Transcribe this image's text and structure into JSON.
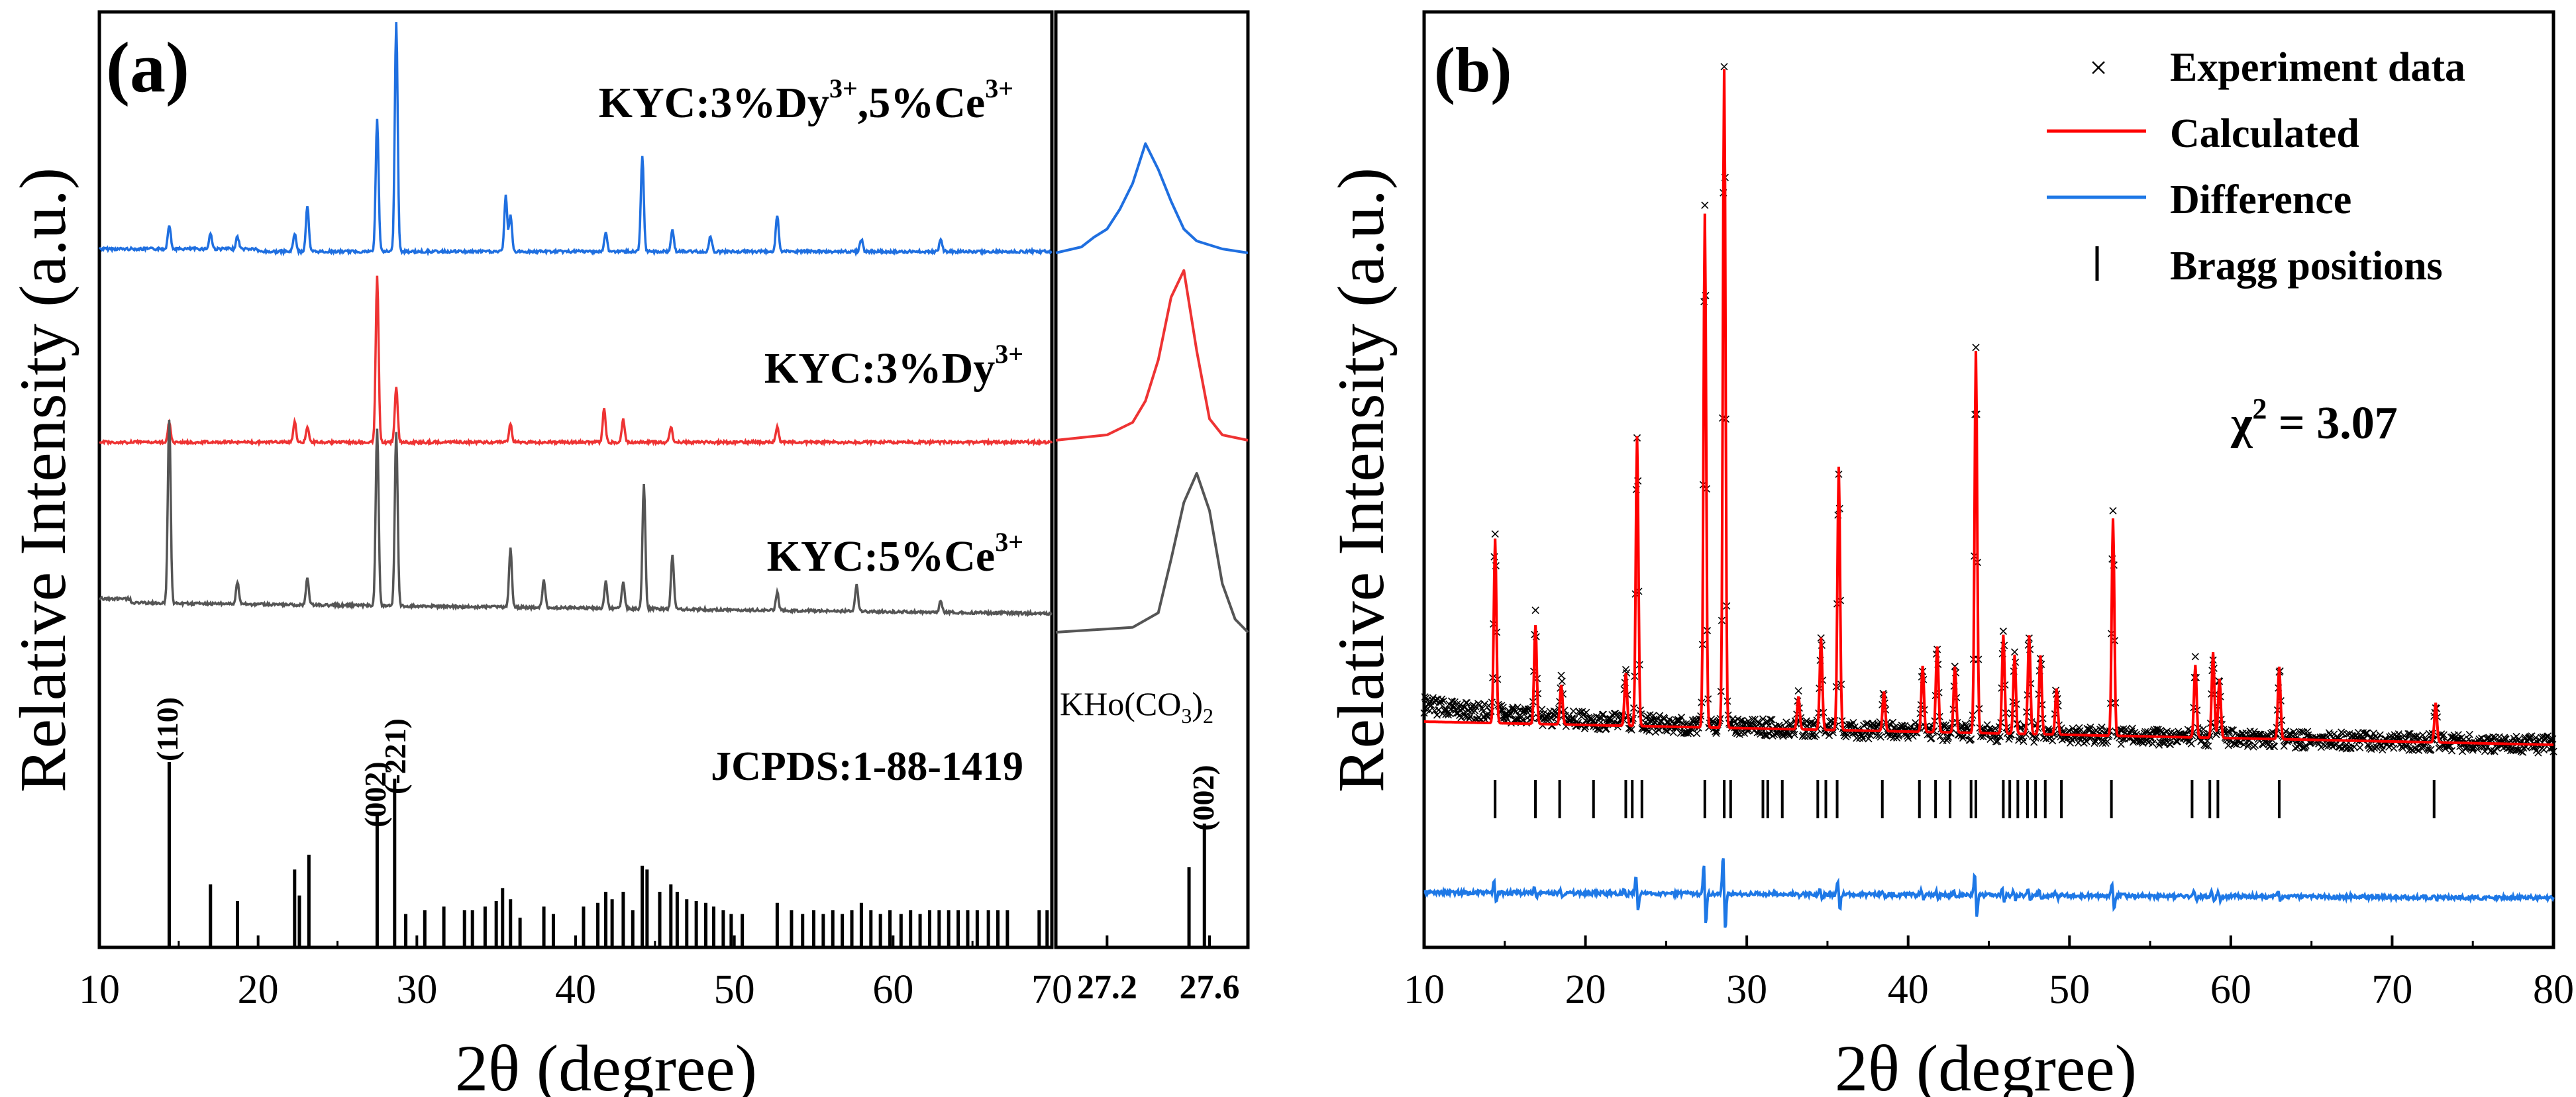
{
  "colors": {
    "blue": "#1f6fe0",
    "red": "#ee3333",
    "gray": "#555555",
    "black": "#000000",
    "calc": "#ff0000",
    "diff": "#1e78e6"
  },
  "panel_a": {
    "label": "(a)",
    "ylabel": "Relative Intensity (a.u.)",
    "xlabel": "2θ (degree)",
    "xticks": [
      "10",
      "20",
      "30",
      "40",
      "50",
      "60",
      "70"
    ],
    "inset_xticks": [
      "27.2",
      "27.6"
    ],
    "sample_labels": [
      {
        "base": "KYC:3%Dy",
        "sup1": "3+",
        "mid": ",5%Ce",
        "sup2": "3+"
      },
      {
        "base": "KYC:3%Dy",
        "sup1": "3+",
        "mid": "",
        "sup2": ""
      },
      {
        "base": "KYC:5%Ce",
        "sup1": "3+",
        "mid": "",
        "sup2": ""
      }
    ],
    "jcpds_label": "JCPDS:1-88-1419",
    "khoco_label": {
      "a": "KHo(CO",
      "b": "3",
      "c": ")",
      "d": "2"
    },
    "miller": [
      "(110)",
      "(002)",
      "(-221)"
    ],
    "inset_miller": "(002)"
  },
  "panel_b": {
    "label": "(b)",
    "ylabel": "Relative Intensity (a.u.)",
    "xlabel": "2θ (degree)",
    "xticks": [
      "10",
      "20",
      "30",
      "40",
      "50",
      "60",
      "70",
      "80"
    ],
    "legend": [
      "Experiment data",
      "Calculated",
      "Difference",
      "Bragg positions"
    ],
    "chi": {
      "sym": "χ",
      "sup": "2",
      "val": " = 3.07"
    }
  },
  "chart_data": [
    {
      "type": "line",
      "title": "",
      "xlabel": "2θ (degree)",
      "ylabel": "Relative Intensity (a.u.)",
      "xlim": [
        10,
        70
      ],
      "series": [
        {
          "name": "KYC:3%Dy3+,5%Ce3+",
          "peaks_x": [
            14.4,
            17.0,
            18.7,
            22.3,
            23.1,
            27.5,
            28.7,
            35.6,
            35.9,
            41.9,
            44.2,
            46.1,
            48.5,
            52.7,
            58.0,
            63.0
          ],
          "peaks_y": [
            0.08,
            0.05,
            0.04,
            0.06,
            0.15,
            0.43,
            0.75,
            0.18,
            0.12,
            0.06,
            0.31,
            0.07,
            0.05,
            0.12,
            0.04,
            0.04
          ]
        },
        {
          "name": "KYC:3%Dy3+",
          "peaks_x": [
            14.4,
            22.3,
            23.1,
            27.5,
            28.7,
            35.9,
            41.8,
            43.0,
            46.0,
            52.7
          ],
          "peaks_y": [
            0.08,
            0.08,
            0.06,
            0.65,
            0.22,
            0.07,
            0.13,
            0.09,
            0.06,
            0.06
          ]
        },
        {
          "name": "KYC:5%Ce3+",
          "peaks_x": [
            14.4,
            18.7,
            23.1,
            27.5,
            28.7,
            35.9,
            38.0,
            41.9,
            43.0,
            44.3,
            46.1,
            52.7,
            57.7,
            63.0
          ],
          "peaks_y": [
            0.82,
            0.1,
            0.12,
            0.79,
            0.77,
            0.26,
            0.12,
            0.12,
            0.12,
            0.56,
            0.24,
            0.08,
            0.12,
            0.05
          ]
        },
        {
          "name": "JCPDS:1-88-1419",
          "sticks_x": [
            14.4,
            17.0,
            18.7,
            22.3,
            22.6,
            23.2,
            27.5,
            28.6,
            29.3,
            30.5,
            31.7,
            33.0,
            33.5,
            34.3,
            35.0,
            35.4,
            35.9,
            36.5,
            38.0,
            38.6,
            40.5,
            41.4,
            41.9,
            42.3,
            43.0,
            43.6,
            44.2,
            44.5,
            45.3,
            46.0,
            46.4,
            47.0,
            47.6,
            48.2,
            48.7,
            49.3,
            49.8,
            50.5,
            52.7,
            53.6,
            54.3,
            55.0,
            55.6,
            56.2,
            56.8,
            57.4,
            58.0,
            58.6,
            59.2,
            59.8,
            60.5,
            61.1,
            61.7,
            62.3,
            62.9,
            63.5,
            64.1,
            64.7,
            65.3,
            66.0,
            66.6,
            67.2,
            69.2,
            69.7
          ],
          "sticks_y": [
            1.0,
            0.34,
            0.25,
            0.42,
            0.28,
            0.5,
            0.73,
            0.91,
            0.18,
            0.2,
            0.22,
            0.2,
            0.2,
            0.22,
            0.25,
            0.32,
            0.26,
            0.16,
            0.22,
            0.18,
            0.22,
            0.24,
            0.3,
            0.26,
            0.3,
            0.2,
            0.44,
            0.42,
            0.3,
            0.34,
            0.3,
            0.26,
            0.25,
            0.24,
            0.22,
            0.2,
            0.18,
            0.18,
            0.24,
            0.2,
            0.18,
            0.2,
            0.18,
            0.2,
            0.18,
            0.2,
            0.24,
            0.2,
            0.18,
            0.2,
            0.18,
            0.2,
            0.18,
            0.2,
            0.2,
            0.2,
            0.2,
            0.2,
            0.2,
            0.2,
            0.2,
            0.2,
            0.2,
            0.2
          ]
        }
      ]
    },
    {
      "type": "line",
      "title": "",
      "xlabel": "",
      "ylabel": "",
      "xlim": [
        27.0,
        27.75
      ],
      "series": [
        {
          "name": "KYC:3%Dy3+,5%Ce3+",
          "x": [
            27.0,
            27.1,
            27.15,
            27.2,
            27.25,
            27.3,
            27.35,
            27.4,
            27.45,
            27.5,
            27.55,
            27.6,
            27.65,
            27.75
          ],
          "y": [
            0.0,
            0.03,
            0.08,
            0.12,
            0.22,
            0.35,
            0.55,
            0.42,
            0.26,
            0.12,
            0.06,
            0.04,
            0.02,
            0.0
          ]
        },
        {
          "name": "KYC:3%Dy3+",
          "x": [
            27.0,
            27.2,
            27.3,
            27.35,
            27.4,
            27.45,
            27.5,
            27.55,
            27.6,
            27.65,
            27.75
          ],
          "y": [
            0.0,
            0.03,
            0.1,
            0.22,
            0.45,
            0.8,
            0.95,
            0.5,
            0.12,
            0.03,
            0.0
          ]
        },
        {
          "name": "KYC:5%Ce3+",
          "x": [
            27.0,
            27.3,
            27.4,
            27.45,
            27.5,
            27.55,
            27.6,
            27.65,
            27.7,
            27.75
          ],
          "y": [
            0.0,
            0.03,
            0.12,
            0.45,
            0.8,
            0.98,
            0.75,
            0.3,
            0.08,
            0.0
          ]
        },
        {
          "name": "KHo(CO3)2",
          "sticks_x": [
            27.52,
            27.58
          ],
          "sticks_y": [
            0.55,
            0.85
          ]
        }
      ]
    },
    {
      "type": "scatter",
      "title": "",
      "xlabel": "2θ (degree)",
      "ylabel": "Relative Intensity (a.u.)",
      "xlim": [
        10,
        80
      ],
      "chi2": 3.07,
      "series": [
        {
          "name": "Calculated",
          "peaks_x": [
            14.4,
            16.9,
            18.5,
            22.5,
            23.2,
            27.4,
            28.6,
            33.2,
            34.6,
            35.7,
            38.5,
            40.9,
            41.8,
            42.9,
            44.2,
            45.9,
            46.6,
            47.5,
            48.2,
            49.2,
            52.7,
            57.8,
            58.9,
            59.3,
            63.0,
            72.7
          ],
          "peaks_y": [
            0.28,
            0.15,
            0.06,
            0.08,
            0.44,
            0.78,
            1.0,
            0.05,
            0.14,
            0.4,
            0.06,
            0.1,
            0.13,
            0.1,
            0.58,
            0.15,
            0.12,
            0.15,
            0.12,
            0.07,
            0.33,
            0.11,
            0.13,
            0.09,
            0.11,
            0.06
          ]
        },
        {
          "name": "Bragg positions",
          "x": [
            14.4,
            16.9,
            18.4,
            20.5,
            22.5,
            22.9,
            23.5,
            27.4,
            28.6,
            29.0,
            31.0,
            31.3,
            32.2,
            34.4,
            34.9,
            35.6,
            38.4,
            40.7,
            41.7,
            42.6,
            43.9,
            44.2,
            45.9,
            46.3,
            46.8,
            47.4,
            47.9,
            48.5,
            49.5,
            52.6,
            57.6,
            58.7,
            59.2,
            63.0,
            72.6
          ]
        }
      ]
    }
  ]
}
